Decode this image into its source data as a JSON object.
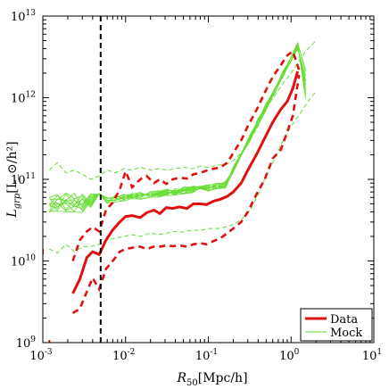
{
  "chart_data": {
    "type": "line",
    "xlabel": "R_50[Mpc/h]",
    "ylabel": "L_grp[L_⊙/h²]",
    "x_scale": "log",
    "y_scale": "log",
    "xlim": [
      0.001,
      10
    ],
    "ylim": [
      1000000000.0,
      10000000000000.0
    ],
    "x_ticks": [
      {
        "base": "10",
        "exp": "-3"
      },
      {
        "base": "10",
        "exp": "-2"
      },
      {
        "base": "10",
        "exp": "-1"
      },
      {
        "base": "10",
        "exp": "0"
      },
      {
        "base": "10",
        "exp": "1"
      }
    ],
    "y_ticks": [
      {
        "base": "10",
        "exp": "9"
      },
      {
        "base": "10",
        "exp": "10"
      },
      {
        "base": "10",
        "exp": "11"
      },
      {
        "base": "10",
        "exp": "12"
      },
      {
        "base": "10",
        "exp": "13"
      }
    ],
    "grid": false,
    "legend": {
      "position": "bottom-right",
      "entries": [
        {
          "label": "Data",
          "color": "#e01010",
          "style": "solid-thick"
        },
        {
          "label": "Mock",
          "color": "#66dd33",
          "style": "solid-thin"
        }
      ]
    },
    "vline": {
      "x": 0.005,
      "color": "#000000",
      "style": "dashed"
    },
    "data": {
      "name": "Data",
      "color": "#e01010",
      "median": {
        "x": [
          0.0023,
          0.0028,
          0.0034,
          0.004,
          0.0048,
          0.0058,
          0.007,
          0.0085,
          0.01,
          0.012,
          0.015,
          0.018,
          0.022,
          0.026,
          0.031,
          0.037,
          0.045,
          0.055,
          0.066,
          0.08,
          0.095,
          0.115,
          0.14,
          0.17,
          0.2,
          0.25,
          0.3,
          0.38,
          0.48,
          0.6,
          0.75,
          0.9,
          1.05,
          1.2
        ],
        "y": [
          4000000000.0,
          6000000000.0,
          11000000000.0,
          13000000000.0,
          12000000000.0,
          18000000000.0,
          24000000000.0,
          30000000000.0,
          35000000000.0,
          36000000000.0,
          34000000000.0,
          39000000000.0,
          42000000000.0,
          38000000000.0,
          45000000000.0,
          44000000000.0,
          46000000000.0,
          44000000000.0,
          50000000000.0,
          50000000000.0,
          49000000000.0,
          54000000000.0,
          57000000000.0,
          62000000000.0,
          70000000000.0,
          90000000000.0,
          130000000000.0,
          200000000000.0,
          320000000000.0,
          500000000000.0,
          720000000000.0,
          900000000000.0,
          1300000000000.0,
          2100000000000.0
        ]
      },
      "upper": {
        "x": [
          0.0023,
          0.0028,
          0.0034,
          0.004,
          0.0048,
          0.0058,
          0.007,
          0.0085,
          0.01,
          0.012,
          0.015,
          0.018,
          0.022,
          0.026,
          0.031,
          0.037,
          0.045,
          0.055,
          0.066,
          0.08,
          0.095,
          0.115,
          0.14,
          0.17,
          0.2,
          0.25,
          0.3,
          0.38,
          0.48,
          0.6,
          0.75,
          0.9,
          1.05,
          1.25
        ],
        "y": [
          10000000000.0,
          18000000000.0,
          23000000000.0,
          26000000000.0,
          23000000000.0,
          42000000000.0,
          52000000000.0,
          75000000000.0,
          125000000000.0,
          80000000000.0,
          100000000000.0,
          110000000000.0,
          90000000000.0,
          100000000000.0,
          88000000000.0,
          100000000000.0,
          105000000000.0,
          102000000000.0,
          115000000000.0,
          120000000000.0,
          128000000000.0,
          135000000000.0,
          140000000000.0,
          160000000000.0,
          210000000000.0,
          300000000000.0,
          450000000000.0,
          700000000000.0,
          1150000000000.0,
          1800000000000.0,
          2500000000000.0,
          3300000000000.0,
          3700000000000.0,
          2200000000000.0
        ]
      },
      "lower": {
        "x": [
          0.0023,
          0.0028,
          0.0034,
          0.004,
          0.0048,
          0.0058,
          0.007,
          0.0085,
          0.01,
          0.012,
          0.015,
          0.018,
          0.022,
          0.026,
          0.031,
          0.037,
          0.045,
          0.055,
          0.066,
          0.08,
          0.095,
          0.115,
          0.14,
          0.17,
          0.2,
          0.25,
          0.3,
          0.38,
          0.48,
          0.6,
          0.75,
          0.9,
          1.05,
          1.25
        ],
        "y": [
          2300000000.0,
          2600000000.0,
          4200000000.0,
          6200000000.0,
          4500000000.0,
          8000000000.0,
          10000000000.0,
          13000000000.0,
          14000000000.0,
          14500000000.0,
          15000000000.0,
          14000000000.0,
          15000000000.0,
          15000000000.0,
          15500000000.0,
          15200000000.0,
          15500000000.0,
          15000000000.0,
          16000000000.0,
          16500000000.0,
          16000000000.0,
          17500000000.0,
          19000000000.0,
          22000000000.0,
          25000000000.0,
          30000000000.0,
          40000000000.0,
          65000000000.0,
          100000000000.0,
          180000000000.0,
          230000000000.0,
          380000000000.0,
          600000000000.0,
          1900000000000.0
        ]
      },
      "extra_points": [
        {
          "x": 0.001,
          "y": 13000000000.0
        },
        {
          "x": 0.0012,
          "y": 1000000000.0
        }
      ]
    },
    "mock": {
      "name": "Mock",
      "color": "#66dd33",
      "upper": {
        "x": [
          0.0012,
          0.0015,
          0.0019,
          0.0024,
          0.003,
          0.0038,
          0.0048,
          0.006,
          0.0075,
          0.0095,
          0.012,
          0.015,
          0.02,
          0.025,
          0.032,
          0.04,
          0.05,
          0.065,
          0.08,
          0.1,
          0.13,
          0.16,
          0.2,
          0.25,
          0.32,
          0.4,
          0.5,
          0.65,
          0.8,
          1.0,
          1.3,
          1.6,
          2.0
        ],
        "y": [
          130000000000.0,
          160000000000.0,
          120000000000.0,
          130000000000.0,
          115000000000.0,
          100000000000.0,
          110000000000.0,
          130000000000.0,
          120000000000.0,
          135000000000.0,
          130000000000.0,
          140000000000.0,
          130000000000.0,
          135000000000.0,
          130000000000.0,
          135000000000.0,
          140000000000.0,
          135000000000.0,
          145000000000.0,
          140000000000.0,
          150000000000.0,
          150000000000.0,
          170000000000.0,
          210000000000.0,
          300000000000.0,
          450000000000.0,
          750000000000.0,
          1100000000000.0,
          1500000000000.0,
          2000000000000.0,
          3000000000000.0,
          4000000000000.0,
          5000000000000.0
        ]
      },
      "lower": {
        "x": [
          0.0012,
          0.0015,
          0.0019,
          0.0024,
          0.003,
          0.0038,
          0.0048,
          0.006,
          0.0075,
          0.0095,
          0.012,
          0.015,
          0.02,
          0.025,
          0.032,
          0.04,
          0.05,
          0.065,
          0.08,
          0.1,
          0.13,
          0.16,
          0.2,
          0.25,
          0.32,
          0.4,
          0.5,
          0.65,
          0.8,
          1.0,
          1.3,
          1.6,
          2.0
        ],
        "y": [
          14000000000.0,
          12500000000.0,
          16000000000.0,
          13000000000.0,
          15000000000.0,
          15000000000.0,
          16000000000.0,
          18000000000.0,
          19000000000.0,
          20000000000.0,
          21000000000.0,
          20000000000.0,
          22000000000.0,
          21000000000.0,
          22000000000.0,
          23000000000.0,
          22500000000.0,
          24000000000.0,
          23500000000.0,
          25000000000.0,
          25000000000.0,
          26000000000.0,
          28000000000.0,
          32000000000.0,
          42000000000.0,
          65000000000.0,
          110000000000.0,
          190000000000.0,
          300000000000.0,
          450000000000.0,
          650000000000.0,
          900000000000.0,
          1200000000000.0
        ]
      },
      "realization_count": 10
    }
  }
}
